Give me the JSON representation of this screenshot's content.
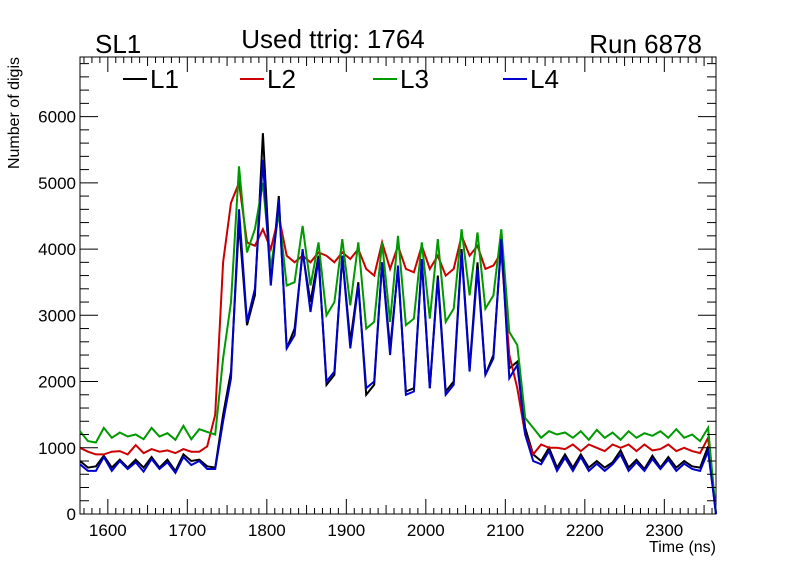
{
  "header": {
    "left": "SL1",
    "center": "Used ttrig: 1764",
    "right": "Run 6878"
  },
  "chart_data": {
    "type": "line",
    "title": "Used ttrig: 1764",
    "xlabel": "Time (ns)",
    "ylabel": "Number of digis",
    "xlim": [
      1565,
      2365
    ],
    "ylim": [
      0,
      6900
    ],
    "x_ticks": [
      "1600",
      "1700",
      "1800",
      "1900",
      "2000",
      "2100",
      "2200",
      "2300"
    ],
    "y_ticks": [
      "0",
      "1000",
      "2000",
      "3000",
      "4000",
      "5000",
      "6000"
    ],
    "grid": false,
    "legend_position": "top",
    "x": [
      1565,
      1575,
      1585,
      1595,
      1605,
      1615,
      1625,
      1635,
      1645,
      1655,
      1665,
      1675,
      1685,
      1695,
      1705,
      1715,
      1725,
      1735,
      1745,
      1755,
      1765,
      1775,
      1785,
      1795,
      1805,
      1815,
      1825,
      1835,
      1845,
      1855,
      1865,
      1875,
      1885,
      1895,
      1905,
      1915,
      1925,
      1935,
      1945,
      1955,
      1965,
      1975,
      1985,
      1995,
      2005,
      2015,
      2025,
      2035,
      2045,
      2055,
      2065,
      2075,
      2085,
      2095,
      2105,
      2115,
      2125,
      2135,
      2145,
      2155,
      2165,
      2175,
      2185,
      2195,
      2205,
      2215,
      2225,
      2235,
      2245,
      2255,
      2265,
      2275,
      2285,
      2295,
      2305,
      2315,
      2325,
      2335,
      2345,
      2355,
      2365
    ],
    "series": [
      {
        "name": "L1",
        "color": "#000000",
        "values": [
          800,
          700,
          720,
          880,
          700,
          820,
          700,
          820,
          700,
          860,
          700,
          820,
          650,
          900,
          800,
          820,
          720,
          700,
          1500,
          2150,
          4400,
          2850,
          3300,
          5750,
          3500,
          4800,
          2500,
          2800,
          3950,
          3200,
          3900,
          1950,
          2100,
          3900,
          2600,
          3500,
          1800,
          1950,
          3800,
          2500,
          3700,
          1850,
          1900,
          3800,
          1900,
          3600,
          1850,
          2000,
          4000,
          2200,
          3800,
          2100,
          2400,
          4100,
          2200,
          2300,
          1300,
          900,
          800,
          1000,
          700,
          900,
          700,
          900,
          700,
          800,
          700,
          780,
          960,
          700,
          820,
          680,
          880,
          700,
          860,
          700,
          800,
          720,
          700,
          1020,
          0
        ]
      },
      {
        "name": "L2",
        "color": "#cc0000",
        "values": [
          1000,
          940,
          900,
          900,
          940,
          950,
          900,
          1040,
          920,
          980,
          940,
          960,
          920,
          980,
          940,
          940,
          1020,
          1500,
          3800,
          4700,
          5000,
          4100,
          4050,
          4300,
          4000,
          4500,
          3900,
          3800,
          3900,
          3800,
          3950,
          3900,
          3800,
          3950,
          3850,
          4000,
          3700,
          3600,
          4100,
          3700,
          4050,
          3700,
          3650,
          4050,
          3700,
          3900,
          3600,
          3700,
          4200,
          3900,
          4050,
          3700,
          3750,
          3950,
          2400,
          1900,
          1200,
          900,
          1050,
          1000,
          1000,
          980,
          1050,
          950,
          1050,
          1000,
          950,
          1050,
          1000,
          1050,
          950,
          1050,
          960,
          980,
          1050,
          950,
          1000,
          950,
          920,
          1150,
          0
        ]
      },
      {
        "name": "L3",
        "color": "#009900",
        "values": [
          1250,
          1100,
          1080,
          1300,
          1150,
          1230,
          1170,
          1200,
          1130,
          1300,
          1170,
          1220,
          1120,
          1330,
          1130,
          1280,
          1240,
          1200,
          2350,
          3200,
          5250,
          3950,
          4300,
          5000,
          3700,
          4550,
          3450,
          3500,
          4350,
          3450,
          4100,
          3000,
          3200,
          4150,
          3150,
          4100,
          2800,
          2900,
          4100,
          2900,
          4200,
          2850,
          2950,
          4100,
          2950,
          4150,
          2900,
          3100,
          4300,
          3300,
          4250,
          3100,
          3300,
          4300,
          2750,
          2550,
          1450,
          1300,
          1150,
          1250,
          1200,
          1230,
          1150,
          1250,
          1120,
          1270,
          1150,
          1230,
          1120,
          1250,
          1150,
          1220,
          1180,
          1250,
          1150,
          1280,
          1150,
          1200,
          1100,
          1300,
          0
        ]
      },
      {
        "name": "L4",
        "color": "#0000cc",
        "values": [
          750,
          650,
          650,
          860,
          650,
          800,
          680,
          780,
          640,
          830,
          680,
          780,
          620,
          860,
          740,
          800,
          680,
          680,
          1400,
          2050,
          4600,
          2900,
          3400,
          5350,
          3450,
          4750,
          2500,
          2700,
          4000,
          3050,
          3850,
          2000,
          2150,
          3900,
          2500,
          3450,
          1900,
          2000,
          3800,
          2400,
          3750,
          1800,
          1850,
          3850,
          1900,
          3550,
          1800,
          1950,
          3950,
          2150,
          3700,
          2100,
          2350,
          4150,
          2050,
          2250,
          1200,
          800,
          750,
          950,
          650,
          850,
          650,
          860,
          650,
          760,
          650,
          750,
          900,
          650,
          780,
          650,
          830,
          680,
          820,
          650,
          760,
          680,
          650,
          950,
          0
        ]
      }
    ]
  }
}
